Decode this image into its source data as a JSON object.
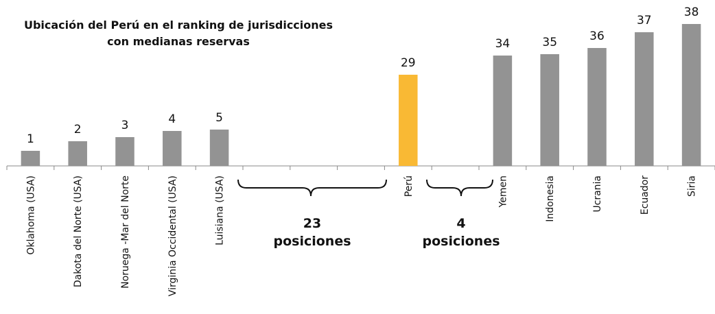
{
  "chart_data": {
    "type": "bar",
    "title": [
      "Ubicación del Perú en el ranking de jurisdicciones",
      "con medianas reservas"
    ],
    "categories": [
      "Oklahoma (USA)",
      "Dakota del Norte (USA)",
      "Noruega -Mar del Norte",
      "Virginia Occidental (USA)",
      "Luisiana (USA)",
      null,
      null,
      null,
      "Perú",
      null,
      "Yemen",
      "Indonesia",
      "Ucrania",
      "Ecuador",
      "Siria"
    ],
    "values": [
      22,
      36,
      42,
      51,
      53,
      null,
      null,
      null,
      133,
      null,
      161,
      163,
      172,
      195,
      207
    ],
    "rank_labels": [
      "1",
      "2",
      "3",
      "4",
      "5",
      null,
      null,
      null,
      "29",
      null,
      "34",
      "35",
      "36",
      "37",
      "38"
    ],
    "colors": [
      "#939393",
      "#939393",
      "#939393",
      "#939393",
      "#939393",
      null,
      null,
      null,
      "#f9b934",
      null,
      "#939393",
      "#939393",
      "#939393",
      "#939393",
      "#939393"
    ],
    "ylim": [
      0,
      220
    ],
    "annotations": [
      {
        "lines": [
          "23",
          "posiciones"
        ]
      },
      {
        "lines": [
          "4",
          "posiciones"
        ]
      }
    ]
  }
}
